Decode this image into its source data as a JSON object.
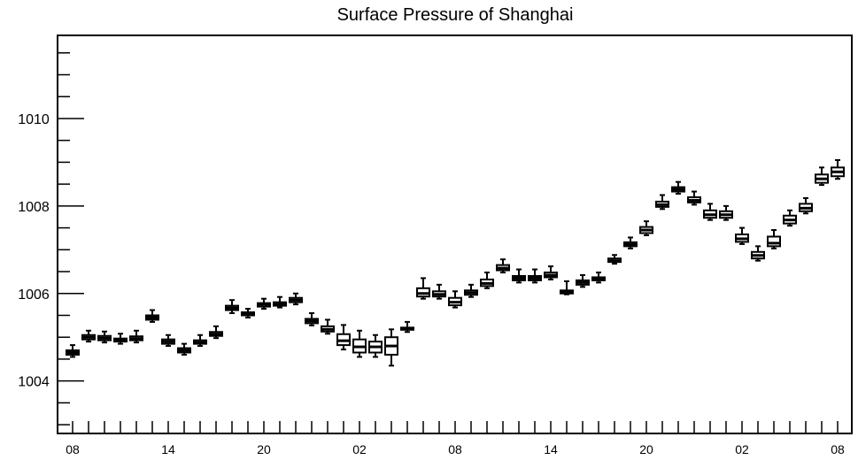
{
  "chart_data": {
    "type": "box",
    "title": "Surface Pressure of Shanghai",
    "xlabel": "",
    "ylabel": "",
    "ylim": [
      1002.8,
      1011.9
    ],
    "y_major_ticks": [
      1004,
      1006,
      1008,
      1010
    ],
    "y_tick_labels": [
      "1004",
      "1006",
      "1008",
      "1010"
    ],
    "y_minor_step": 0.5,
    "x_tick_labels": [
      "08",
      "14",
      "20",
      "02",
      "08",
      "14",
      "20",
      "02",
      "08"
    ],
    "x_tick_label_positions": [
      0,
      6,
      12,
      18,
      24,
      30,
      36,
      42,
      48
    ],
    "grid": false,
    "boxes": [
      {
        "x": 0,
        "min": 1004.55,
        "q1": 1004.6,
        "median": 1004.65,
        "q3": 1004.7,
        "max": 1004.82
      },
      {
        "x": 1,
        "min": 1004.9,
        "q1": 1004.95,
        "median": 1005.0,
        "q3": 1005.05,
        "max": 1005.15
      },
      {
        "x": 2,
        "min": 1004.88,
        "q1": 1004.93,
        "median": 1004.98,
        "q3": 1005.03,
        "max": 1005.13
      },
      {
        "x": 3,
        "min": 1004.85,
        "q1": 1004.9,
        "median": 1004.93,
        "q3": 1004.97,
        "max": 1005.08
      },
      {
        "x": 4,
        "min": 1004.88,
        "q1": 1004.93,
        "median": 1004.97,
        "q3": 1005.02,
        "max": 1005.15
      },
      {
        "x": 5,
        "min": 1005.35,
        "q1": 1005.4,
        "median": 1005.45,
        "q3": 1005.5,
        "max": 1005.62
      },
      {
        "x": 6,
        "min": 1004.8,
        "q1": 1004.85,
        "median": 1004.9,
        "q3": 1004.95,
        "max": 1005.05
      },
      {
        "x": 7,
        "min": 1004.6,
        "q1": 1004.65,
        "median": 1004.7,
        "q3": 1004.75,
        "max": 1004.85
      },
      {
        "x": 8,
        "min": 1004.8,
        "q1": 1004.85,
        "median": 1004.88,
        "q3": 1004.93,
        "max": 1005.05
      },
      {
        "x": 9,
        "min": 1004.98,
        "q1": 1005.03,
        "median": 1005.07,
        "q3": 1005.12,
        "max": 1005.25
      },
      {
        "x": 10,
        "min": 1005.55,
        "q1": 1005.62,
        "median": 1005.67,
        "q3": 1005.72,
        "max": 1005.85
      },
      {
        "x": 11,
        "min": 1005.45,
        "q1": 1005.5,
        "median": 1005.53,
        "q3": 1005.57,
        "max": 1005.65
      },
      {
        "x": 12,
        "min": 1005.65,
        "q1": 1005.7,
        "median": 1005.75,
        "q3": 1005.78,
        "max": 1005.88
      },
      {
        "x": 13,
        "min": 1005.68,
        "q1": 1005.72,
        "median": 1005.76,
        "q3": 1005.8,
        "max": 1005.92
      },
      {
        "x": 14,
        "min": 1005.75,
        "q1": 1005.8,
        "median": 1005.85,
        "q3": 1005.9,
        "max": 1006.0
      },
      {
        "x": 15,
        "min": 1005.27,
        "q1": 1005.32,
        "median": 1005.37,
        "q3": 1005.42,
        "max": 1005.55
      },
      {
        "x": 16,
        "min": 1005.08,
        "q1": 1005.13,
        "median": 1005.18,
        "q3": 1005.25,
        "max": 1005.4
      },
      {
        "x": 17,
        "min": 1004.72,
        "q1": 1004.82,
        "median": 1004.92,
        "q3": 1005.07,
        "max": 1005.28
      },
      {
        "x": 18,
        "min": 1004.55,
        "q1": 1004.65,
        "median": 1004.78,
        "q3": 1004.95,
        "max": 1005.15
      },
      {
        "x": 19,
        "min": 1004.55,
        "q1": 1004.65,
        "median": 1004.78,
        "q3": 1004.9,
        "max": 1005.05
      },
      {
        "x": 20,
        "min": 1004.35,
        "q1": 1004.6,
        "median": 1004.8,
        "q3": 1005.0,
        "max": 1005.18
      },
      {
        "x": 21,
        "min": 1005.12,
        "q1": 1005.17,
        "median": 1005.2,
        "q3": 1005.22,
        "max": 1005.35
      },
      {
        "x": 22,
        "min": 1005.88,
        "q1": 1005.93,
        "median": 1006.0,
        "q3": 1006.12,
        "max": 1006.35
      },
      {
        "x": 23,
        "min": 1005.88,
        "q1": 1005.93,
        "median": 1005.98,
        "q3": 1006.05,
        "max": 1006.2
      },
      {
        "x": 24,
        "min": 1005.68,
        "q1": 1005.73,
        "median": 1005.8,
        "q3": 1005.9,
        "max": 1006.05
      },
      {
        "x": 25,
        "min": 1005.92,
        "q1": 1005.97,
        "median": 1006.02,
        "q3": 1006.07,
        "max": 1006.2
      },
      {
        "x": 26,
        "min": 1006.12,
        "q1": 1006.17,
        "median": 1006.23,
        "q3": 1006.32,
        "max": 1006.48
      },
      {
        "x": 27,
        "min": 1006.48,
        "q1": 1006.53,
        "median": 1006.58,
        "q3": 1006.65,
        "max": 1006.78
      },
      {
        "x": 28,
        "min": 1006.25,
        "q1": 1006.3,
        "median": 1006.35,
        "q3": 1006.4,
        "max": 1006.55
      },
      {
        "x": 29,
        "min": 1006.25,
        "q1": 1006.3,
        "median": 1006.35,
        "q3": 1006.4,
        "max": 1006.55
      },
      {
        "x": 30,
        "min": 1006.32,
        "q1": 1006.37,
        "median": 1006.42,
        "q3": 1006.48,
        "max": 1006.62
      },
      {
        "x": 31,
        "min": 1005.98,
        "q1": 1006.0,
        "median": 1006.03,
        "q3": 1006.07,
        "max": 1006.28
      },
      {
        "x": 32,
        "min": 1006.15,
        "q1": 1006.2,
        "median": 1006.25,
        "q3": 1006.3,
        "max": 1006.42
      },
      {
        "x": 33,
        "min": 1006.25,
        "q1": 1006.3,
        "median": 1006.33,
        "q3": 1006.37,
        "max": 1006.48
      },
      {
        "x": 34,
        "min": 1006.68,
        "q1": 1006.72,
        "median": 1006.75,
        "q3": 1006.8,
        "max": 1006.88
      },
      {
        "x": 35,
        "min": 1007.03,
        "q1": 1007.08,
        "median": 1007.12,
        "q3": 1007.17,
        "max": 1007.28
      },
      {
        "x": 36,
        "min": 1007.33,
        "q1": 1007.38,
        "median": 1007.45,
        "q3": 1007.52,
        "max": 1007.65
      },
      {
        "x": 37,
        "min": 1007.93,
        "q1": 1007.98,
        "median": 1008.03,
        "q3": 1008.1,
        "max": 1008.25
      },
      {
        "x": 38,
        "min": 1008.28,
        "q1": 1008.33,
        "median": 1008.38,
        "q3": 1008.43,
        "max": 1008.55
      },
      {
        "x": 39,
        "min": 1008.03,
        "q1": 1008.08,
        "median": 1008.13,
        "q3": 1008.2,
        "max": 1008.33
      },
      {
        "x": 40,
        "min": 1007.68,
        "q1": 1007.73,
        "median": 1007.8,
        "q3": 1007.9,
        "max": 1008.05
      },
      {
        "x": 41,
        "min": 1007.68,
        "q1": 1007.73,
        "median": 1007.8,
        "q3": 1007.88,
        "max": 1008.0
      },
      {
        "x": 42,
        "min": 1007.13,
        "q1": 1007.18,
        "median": 1007.25,
        "q3": 1007.35,
        "max": 1007.5
      },
      {
        "x": 43,
        "min": 1006.75,
        "q1": 1006.8,
        "median": 1006.87,
        "q3": 1006.95,
        "max": 1007.08
      },
      {
        "x": 44,
        "min": 1007.03,
        "q1": 1007.08,
        "median": 1007.15,
        "q3": 1007.3,
        "max": 1007.45
      },
      {
        "x": 45,
        "min": 1007.55,
        "q1": 1007.6,
        "median": 1007.68,
        "q3": 1007.78,
        "max": 1007.9
      },
      {
        "x": 46,
        "min": 1007.83,
        "q1": 1007.88,
        "median": 1007.95,
        "q3": 1008.05,
        "max": 1008.18
      },
      {
        "x": 47,
        "min": 1008.48,
        "q1": 1008.53,
        "median": 1008.62,
        "q3": 1008.72,
        "max": 1008.88
      },
      {
        "x": 48,
        "min": 1008.62,
        "q1": 1008.68,
        "median": 1008.78,
        "q3": 1008.88,
        "max": 1009.05
      }
    ]
  }
}
